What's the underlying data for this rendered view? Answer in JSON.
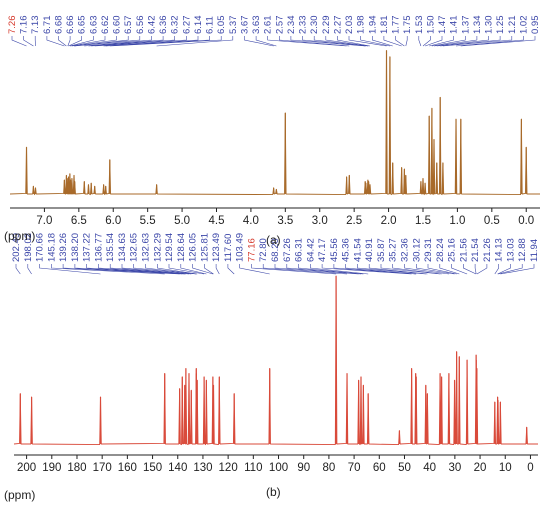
{
  "colors": {
    "spectrum_1h": "#a86a2a",
    "spectrum_13c": "#d94a3a",
    "peak_label": "#3b46a8",
    "peak_label_highlight": "#d63b2e",
    "axis": "#222222"
  },
  "panels": {
    "a": {
      "label": "(a)",
      "unit": "(ppm)"
    },
    "b": {
      "label": "(b)",
      "unit": "(ppm)"
    }
  },
  "chart_data": [
    {
      "type": "line",
      "title": "",
      "xlabel": "(ppm)",
      "ylabel": "",
      "xlim": [
        7.5,
        -0.2
      ],
      "x_reversed": true,
      "xticks": [
        "7.0",
        "6.5",
        "6.0",
        "5.5",
        "5.0",
        "4.5",
        "4.0",
        "3.5",
        "3.0",
        "2.5",
        "2.0",
        "1.5",
        "1.0",
        "0.5",
        "0.0"
      ],
      "peak_labels": [
        "7.26",
        "7.16",
        "7.13",
        "6.71",
        "6.68",
        "6.66",
        "6.65",
        "6.63",
        "6.62",
        "6.60",
        "6.57",
        "6.56",
        "6.42",
        "6.36",
        "6.32",
        "6.27",
        "6.14",
        "6.11",
        "6.05",
        "5.37",
        "3.67",
        "3.63",
        "2.61",
        "2.57",
        "2.34",
        "2.33",
        "2.30",
        "2.29",
        "2.27",
        "2.03",
        "1.98",
        "1.94",
        "1.81",
        "1.77",
        "1.75",
        "1.53",
        "1.50",
        "1.47",
        "1.41",
        "1.37",
        "1.34",
        "1.30",
        "1.25",
        "1.21",
        "1.02",
        "0.95"
      ],
      "highlight_labels": [
        "7.26"
      ],
      "peaks": [
        {
          "x": 7.26,
          "h": 0.3
        },
        {
          "x": 7.16,
          "h": 0.05
        },
        {
          "x": 7.13,
          "h": 0.04
        },
        {
          "x": 6.71,
          "h": 0.09
        },
        {
          "x": 6.68,
          "h": 0.12
        },
        {
          "x": 6.66,
          "h": 0.1
        },
        {
          "x": 6.65,
          "h": 0.11
        },
        {
          "x": 6.63,
          "h": 0.13
        },
        {
          "x": 6.62,
          "h": 0.09
        },
        {
          "x": 6.6,
          "h": 0.1
        },
        {
          "x": 6.57,
          "h": 0.12
        },
        {
          "x": 6.56,
          "h": 0.08
        },
        {
          "x": 6.42,
          "h": 0.08
        },
        {
          "x": 6.36,
          "h": 0.06
        },
        {
          "x": 6.32,
          "h": 0.07
        },
        {
          "x": 6.27,
          "h": 0.05
        },
        {
          "x": 6.14,
          "h": 0.06
        },
        {
          "x": 6.11,
          "h": 0.05
        },
        {
          "x": 6.05,
          "h": 0.22
        },
        {
          "x": 5.37,
          "h": 0.06
        },
        {
          "x": 3.67,
          "h": 0.04
        },
        {
          "x": 3.63,
          "h": 0.03
        },
        {
          "x": 3.5,
          "h": 0.52
        },
        {
          "x": 2.61,
          "h": 0.11
        },
        {
          "x": 2.57,
          "h": 0.12
        },
        {
          "x": 2.34,
          "h": 0.08
        },
        {
          "x": 2.33,
          "h": 0.07
        },
        {
          "x": 2.3,
          "h": 0.09
        },
        {
          "x": 2.29,
          "h": 0.08
        },
        {
          "x": 2.27,
          "h": 0.06
        },
        {
          "x": 2.03,
          "h": 0.92
        },
        {
          "x": 1.98,
          "h": 0.88
        },
        {
          "x": 1.94,
          "h": 0.2
        },
        {
          "x": 1.81,
          "h": 0.17
        },
        {
          "x": 1.77,
          "h": 0.16
        },
        {
          "x": 1.75,
          "h": 0.12
        },
        {
          "x": 1.53,
          "h": 0.08
        },
        {
          "x": 1.5,
          "h": 0.1
        },
        {
          "x": 1.47,
          "h": 0.07
        },
        {
          "x": 1.41,
          "h": 0.5
        },
        {
          "x": 1.37,
          "h": 0.55
        },
        {
          "x": 1.34,
          "h": 0.35
        },
        {
          "x": 1.3,
          "h": 0.2
        },
        {
          "x": 1.25,
          "h": 0.62
        },
        {
          "x": 1.21,
          "h": 0.2
        },
        {
          "x": 1.02,
          "h": 0.48
        },
        {
          "x": 0.95,
          "h": 0.48
        },
        {
          "x": 0.07,
          "h": 0.48
        },
        {
          "x": 0.0,
          "h": 0.3
        }
      ]
    },
    {
      "type": "line",
      "title": "",
      "xlabel": "(ppm)",
      "ylabel": "",
      "xlim": [
        205,
        -3
      ],
      "x_reversed": true,
      "xticks": [
        "200",
        "190",
        "180",
        "170",
        "160",
        "150",
        "140",
        "130",
        "120",
        "110",
        "100",
        "90",
        "80",
        "70",
        "60",
        "50",
        "40",
        "30",
        "20",
        "10",
        "0"
      ],
      "peak_labels": [
        "202.49",
        "198.02",
        "170.66",
        "145.18",
        "139.26",
        "138.20",
        "137.22",
        "136.77",
        "135.54",
        "134.63",
        "132.65",
        "132.63",
        "132.29",
        "129.54",
        "128.64",
        "126.05",
        "125.81",
        "123.49",
        "117.60",
        "103.49",
        "77.16",
        "72.80",
        "68.20",
        "67.26",
        "66.31",
        "64.42",
        "47.17",
        "45.56",
        "45.36",
        "41.54",
        "40.91",
        "35.87",
        "35.27",
        "32.36",
        "30.12",
        "29.31",
        "28.24",
        "25.16",
        "21.56",
        "21.54",
        "21.26",
        "14.13",
        "13.03",
        "12.88",
        "11.94"
      ],
      "highlight_labels": [
        "77.16"
      ],
      "peaks": [
        {
          "x": 202.49,
          "h": 0.3
        },
        {
          "x": 198.02,
          "h": 0.28
        },
        {
          "x": 170.66,
          "h": 0.28
        },
        {
          "x": 145.18,
          "h": 0.42
        },
        {
          "x": 139.26,
          "h": 0.33
        },
        {
          "x": 138.2,
          "h": 0.4
        },
        {
          "x": 137.22,
          "h": 0.35
        },
        {
          "x": 136.77,
          "h": 0.45
        },
        {
          "x": 135.54,
          "h": 0.42
        },
        {
          "x": 134.63,
          "h": 0.32
        },
        {
          "x": 132.65,
          "h": 0.45
        },
        {
          "x": 132.63,
          "h": 0.42
        },
        {
          "x": 132.29,
          "h": 0.38
        },
        {
          "x": 129.54,
          "h": 0.4
        },
        {
          "x": 128.64,
          "h": 0.38
        },
        {
          "x": 126.05,
          "h": 0.4
        },
        {
          "x": 125.81,
          "h": 0.35
        },
        {
          "x": 123.49,
          "h": 0.4
        },
        {
          "x": 117.6,
          "h": 0.3
        },
        {
          "x": 103.49,
          "h": 0.45
        },
        {
          "x": 77.16,
          "h": 1.0
        },
        {
          "x": 72.8,
          "h": 0.42
        },
        {
          "x": 68.2,
          "h": 0.38
        },
        {
          "x": 67.26,
          "h": 0.4
        },
        {
          "x": 66.31,
          "h": 0.35
        },
        {
          "x": 64.42,
          "h": 0.3
        },
        {
          "x": 52.0,
          "h": 0.08
        },
        {
          "x": 47.17,
          "h": 0.45
        },
        {
          "x": 45.56,
          "h": 0.42
        },
        {
          "x": 45.36,
          "h": 0.4
        },
        {
          "x": 41.54,
          "h": 0.35
        },
        {
          "x": 40.91,
          "h": 0.3
        },
        {
          "x": 35.87,
          "h": 0.42
        },
        {
          "x": 35.27,
          "h": 0.4
        },
        {
          "x": 32.36,
          "h": 0.42
        },
        {
          "x": 30.12,
          "h": 0.38
        },
        {
          "x": 29.31,
          "h": 0.55
        },
        {
          "x": 28.24,
          "h": 0.52
        },
        {
          "x": 25.16,
          "h": 0.5
        },
        {
          "x": 21.56,
          "h": 0.53
        },
        {
          "x": 21.54,
          "h": 0.5
        },
        {
          "x": 21.26,
          "h": 0.45
        },
        {
          "x": 14.13,
          "h": 0.25
        },
        {
          "x": 13.03,
          "h": 0.28
        },
        {
          "x": 12.88,
          "h": 0.26
        },
        {
          "x": 11.94,
          "h": 0.25
        },
        {
          "x": 1.5,
          "h": 0.1
        }
      ]
    }
  ]
}
